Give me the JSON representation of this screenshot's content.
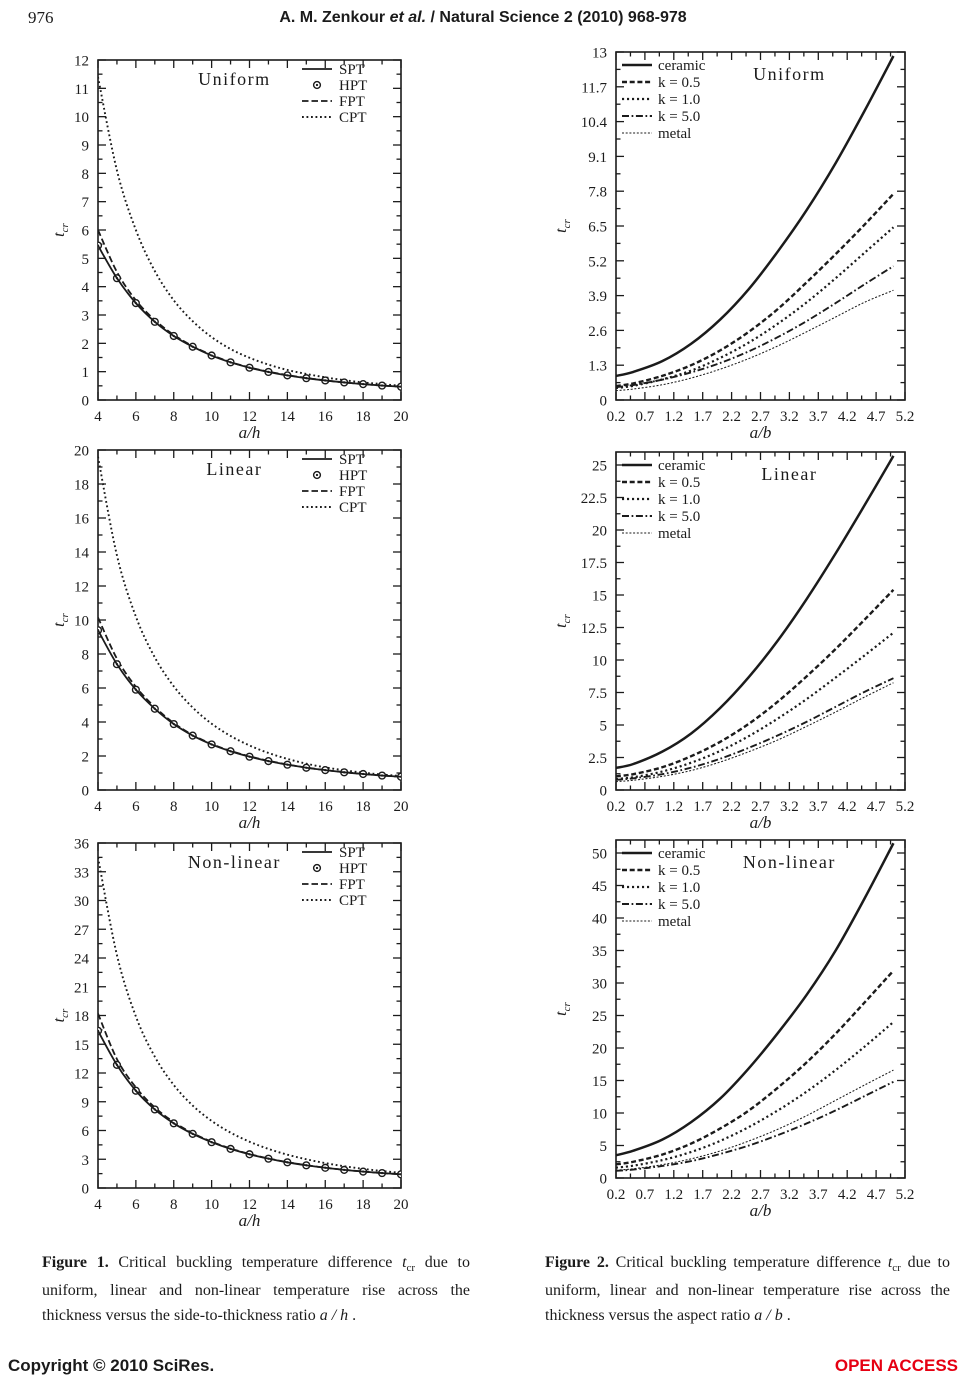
{
  "header": {
    "page_number": "976",
    "title_pre": "A. M. Zenkour ",
    "title_italic": "et al.",
    "title_post": " / Natural Science 2 (2010) 968-978"
  },
  "footer": {
    "left": "Copyright © 2010 SciRes.",
    "right": "OPEN ACCESS",
    "right_color": "#e60012"
  },
  "captions": {
    "fig1": {
      "label": "Figure 1.",
      "before": " Critical buckling temperature difference ",
      "symbol": "t",
      "symbol_sub": "cr",
      "after_symbol": " due to uniform, linear and non-linear temperature rise across the thickness versus the side-to-thickness ratio ",
      "ratio": "a / h",
      "end": " ."
    },
    "fig2": {
      "label": "Figure 2.",
      "before": " Critical buckling temperature difference ",
      "symbol": "t",
      "symbol_sub": "cr",
      "after_symbol": " due to uniform, linear and non-linear temperature rise across the thickness versus the aspect ratio ",
      "ratio": "a / b",
      "end": " ."
    }
  },
  "chart_data": [
    {
      "id": "fig1_uniform",
      "type": "line",
      "title": "Uniform",
      "xlabel": "a/h",
      "ylabel": "t",
      "ylabel_sub": "cr",
      "xlim": [
        4,
        20
      ],
      "ylim": [
        0,
        12
      ],
      "x_major": 2,
      "y_major": 1,
      "grid": false,
      "legend_position": "top-right",
      "x": [
        4,
        5,
        6,
        7,
        8,
        9,
        10,
        11,
        12,
        13,
        14,
        15,
        16,
        17,
        18,
        19,
        20
      ],
      "series": [
        {
          "name": "SPT",
          "style": "solid",
          "y": [
            5.45,
            4.3,
            3.42,
            2.76,
            2.26,
            1.88,
            1.57,
            1.33,
            1.14,
            0.99,
            0.87,
            0.77,
            0.69,
            0.62,
            0.56,
            0.51,
            0.47
          ]
        },
        {
          "name": "HPT",
          "style": "marker",
          "y": [
            5.45,
            4.3,
            3.42,
            2.76,
            2.26,
            1.88,
            1.57,
            1.33,
            1.14,
            0.99,
            0.87,
            0.77,
            0.69,
            0.62,
            0.56,
            0.51,
            0.47
          ]
        },
        {
          "name": "FPT",
          "style": "dashed",
          "y": [
            6.0,
            4.52,
            3.52,
            2.82,
            2.3,
            1.9,
            1.59,
            1.34,
            1.15,
            1.0,
            0.88,
            0.78,
            0.69,
            0.62,
            0.56,
            0.51,
            0.47
          ]
        },
        {
          "name": "CPT",
          "style": "dotted",
          "y": [
            11.4,
            8.1,
            6.0,
            4.55,
            3.52,
            2.78,
            2.22,
            1.8,
            1.49,
            1.25,
            1.06,
            0.92,
            0.8,
            0.7,
            0.62,
            0.56,
            0.5
          ]
        }
      ]
    },
    {
      "id": "fig1_linear",
      "type": "line",
      "title": "Linear",
      "xlabel": "a/h",
      "ylabel": "t",
      "ylabel_sub": "cr",
      "xlim": [
        4,
        20
      ],
      "ylim": [
        0,
        20
      ],
      "x_major": 2,
      "y_major": 2,
      "grid": false,
      "legend_position": "top-right",
      "x": [
        4,
        5,
        6,
        7,
        8,
        9,
        10,
        11,
        12,
        13,
        14,
        15,
        16,
        17,
        18,
        19,
        20
      ],
      "series": [
        {
          "name": "SPT",
          "style": "solid",
          "y": [
            9.4,
            7.4,
            5.9,
            4.78,
            3.88,
            3.2,
            2.68,
            2.28,
            1.96,
            1.7,
            1.49,
            1.31,
            1.17,
            1.04,
            0.94,
            0.85,
            0.78
          ]
        },
        {
          "name": "HPT",
          "style": "marker",
          "y": [
            9.4,
            7.4,
            5.9,
            4.78,
            3.88,
            3.2,
            2.68,
            2.28,
            1.96,
            1.7,
            1.49,
            1.31,
            1.17,
            1.04,
            0.94,
            0.85,
            0.78
          ]
        },
        {
          "name": "FPT",
          "style": "dashed",
          "y": [
            10.15,
            7.72,
            6.07,
            4.88,
            3.94,
            3.24,
            2.71,
            2.3,
            1.98,
            1.72,
            1.5,
            1.32,
            1.17,
            1.05,
            0.94,
            0.85,
            0.78
          ]
        },
        {
          "name": "CPT",
          "style": "dotted",
          "y": [
            19.6,
            13.8,
            10.2,
            7.8,
            6.1,
            4.85,
            3.9,
            3.18,
            2.62,
            2.18,
            1.83,
            1.55,
            1.33,
            1.16,
            1.02,
            0.91,
            0.82
          ]
        }
      ]
    },
    {
      "id": "fig1_nonlinear",
      "type": "line",
      "title": "Non-linear",
      "xlabel": "a/h",
      "ylabel": "t",
      "ylabel_sub": "cr",
      "xlim": [
        4,
        20
      ],
      "ylim": [
        0,
        36
      ],
      "x_major": 2,
      "y_major": 3,
      "grid": false,
      "legend_position": "top-right",
      "x": [
        4,
        5,
        6,
        7,
        8,
        9,
        10,
        11,
        12,
        13,
        14,
        15,
        16,
        17,
        18,
        19,
        20
      ],
      "series": [
        {
          "name": "SPT",
          "style": "solid",
          "y": [
            16.4,
            12.85,
            10.15,
            8.2,
            6.75,
            5.65,
            4.78,
            4.08,
            3.52,
            3.06,
            2.68,
            2.37,
            2.11,
            1.89,
            1.71,
            1.56,
            1.43
          ]
        },
        {
          "name": "HPT",
          "style": "marker",
          "y": [
            16.4,
            12.85,
            10.15,
            8.2,
            6.75,
            5.65,
            4.78,
            4.08,
            3.52,
            3.06,
            2.68,
            2.37,
            2.11,
            1.89,
            1.71,
            1.56,
            1.43
          ]
        },
        {
          "name": "FPT",
          "style": "dashed",
          "y": [
            18.2,
            13.45,
            10.5,
            8.4,
            6.88,
            5.73,
            4.83,
            4.12,
            3.55,
            3.08,
            2.7,
            2.38,
            2.12,
            1.9,
            1.72,
            1.56,
            1.43
          ]
        },
        {
          "name": "CPT",
          "style": "dotted",
          "y": [
            34.5,
            24.3,
            17.9,
            13.7,
            10.75,
            8.6,
            7.0,
            5.78,
            4.83,
            4.08,
            3.48,
            3.0,
            2.6,
            2.27,
            2.0,
            1.77,
            1.58
          ]
        }
      ]
    },
    {
      "id": "fig2_uniform",
      "type": "line",
      "title": "Uniform",
      "xlabel": "a/b",
      "ylabel": "t",
      "ylabel_sub": "cr",
      "xlim": [
        0.2,
        5.2
      ],
      "ylim": [
        0,
        13
      ],
      "x_major": 0.5,
      "y_major": 1.3,
      "grid": false,
      "legend_position": "top-left",
      "x": [
        0.2,
        0.5,
        1.0,
        1.5,
        2.0,
        2.5,
        3.0,
        3.5,
        4.0,
        4.5,
        5.0
      ],
      "series": [
        {
          "name": "ceramic",
          "style": "solid-bold",
          "y": [
            0.9,
            1.05,
            1.45,
            2.1,
            3.0,
            4.15,
            5.55,
            7.1,
            8.85,
            10.8,
            12.85
          ]
        },
        {
          "name": "k = 0.5",
          "style": "bold-dashed",
          "y": [
            0.52,
            0.62,
            0.9,
            1.3,
            1.85,
            2.55,
            3.4,
            4.4,
            5.45,
            6.55,
            7.7
          ]
        },
        {
          "name": "k = 1.0",
          "style": "dotted-medium",
          "y": [
            0.45,
            0.53,
            0.77,
            1.1,
            1.57,
            2.15,
            2.85,
            3.65,
            4.55,
            5.5,
            6.45
          ]
        },
        {
          "name": "k = 5.0",
          "style": "dash-dot",
          "y": [
            0.48,
            0.56,
            0.76,
            1.03,
            1.38,
            1.82,
            2.35,
            2.95,
            3.62,
            4.32,
            5.0
          ]
        },
        {
          "name": "metal",
          "style": "fine-dotted",
          "y": [
            0.35,
            0.41,
            0.57,
            0.82,
            1.15,
            1.55,
            2.02,
            2.55,
            3.1,
            3.65,
            4.1
          ]
        }
      ]
    },
    {
      "id": "fig2_linear",
      "type": "line",
      "title": "Linear",
      "xlabel": "a/b",
      "ylabel": "t",
      "ylabel_sub": "cr",
      "xlim": [
        0.2,
        5.2
      ],
      "ylim": [
        0,
        26
      ],
      "x_major": 0.5,
      "y_major": 2.5,
      "grid": false,
      "legend_position": "top-left",
      "x": [
        0.2,
        0.5,
        1.0,
        1.5,
        2.0,
        2.5,
        3.0,
        3.5,
        4.0,
        4.5,
        5.0
      ],
      "series": [
        {
          "name": "ceramic",
          "style": "solid-bold",
          "y": [
            1.7,
            2.0,
            2.95,
            4.35,
            6.3,
            8.7,
            11.5,
            14.7,
            18.2,
            21.9,
            25.7
          ]
        },
        {
          "name": "k = 0.5",
          "style": "bold-dashed",
          "y": [
            1.05,
            1.22,
            1.75,
            2.6,
            3.7,
            5.1,
            6.8,
            8.75,
            10.85,
            13.1,
            15.4
          ]
        },
        {
          "name": "k = 1.0",
          "style": "dotted-medium",
          "y": [
            0.85,
            0.98,
            1.42,
            2.1,
            3.0,
            4.15,
            5.5,
            7.0,
            8.65,
            10.35,
            12.1
          ]
        },
        {
          "name": "k = 5.0",
          "style": "dash-dot",
          "y": [
            0.78,
            0.9,
            1.22,
            1.72,
            2.4,
            3.25,
            4.2,
            5.25,
            6.4,
            7.55,
            8.6
          ]
        },
        {
          "name": "metal",
          "style": "fine-dotted",
          "y": [
            0.65,
            0.75,
            1.05,
            1.5,
            2.15,
            2.95,
            3.85,
            4.9,
            6.0,
            7.15,
            8.25
          ]
        }
      ]
    },
    {
      "id": "fig2_nonlinear",
      "type": "line",
      "title": "Non-linear",
      "xlabel": "a/b",
      "ylabel": "t",
      "ylabel_sub": "cr",
      "xlim": [
        0.2,
        5.2
      ],
      "ylim": [
        0,
        52
      ],
      "x_major": 0.5,
      "y_major": 5,
      "grid": false,
      "legend_position": "top-left",
      "x": [
        0.2,
        0.5,
        1.0,
        1.5,
        2.0,
        2.5,
        3.0,
        3.5,
        4.0,
        4.5,
        5.0
      ],
      "series": [
        {
          "name": "ceramic",
          "style": "solid-bold",
          "y": [
            3.5,
            4.2,
            5.9,
            8.6,
            12.2,
            16.9,
            22.3,
            28.2,
            35.0,
            43.0,
            51.5
          ]
        },
        {
          "name": "k = 0.5",
          "style": "bold-dashed",
          "y": [
            2.1,
            2.5,
            3.6,
            5.3,
            7.6,
            10.4,
            13.9,
            17.8,
            22.2,
            27.0,
            31.9
          ]
        },
        {
          "name": "k = 1.0",
          "style": "dotted-medium",
          "y": [
            1.6,
            1.9,
            2.75,
            4.0,
            5.7,
            7.85,
            10.4,
            13.3,
            16.6,
            20.2,
            24.0
          ]
        },
        {
          "name": "k = 5.0",
          "style": "dash-dot",
          "y": [
            1.1,
            1.3,
            1.85,
            2.6,
            3.7,
            5.0,
            6.6,
            8.4,
            10.4,
            12.6,
            14.8
          ]
        },
        {
          "name": "metal",
          "style": "fine-dotted",
          "y": [
            1.2,
            1.42,
            2.05,
            2.95,
            4.15,
            5.7,
            7.5,
            9.6,
            11.95,
            14.3,
            16.6
          ]
        }
      ]
    }
  ]
}
